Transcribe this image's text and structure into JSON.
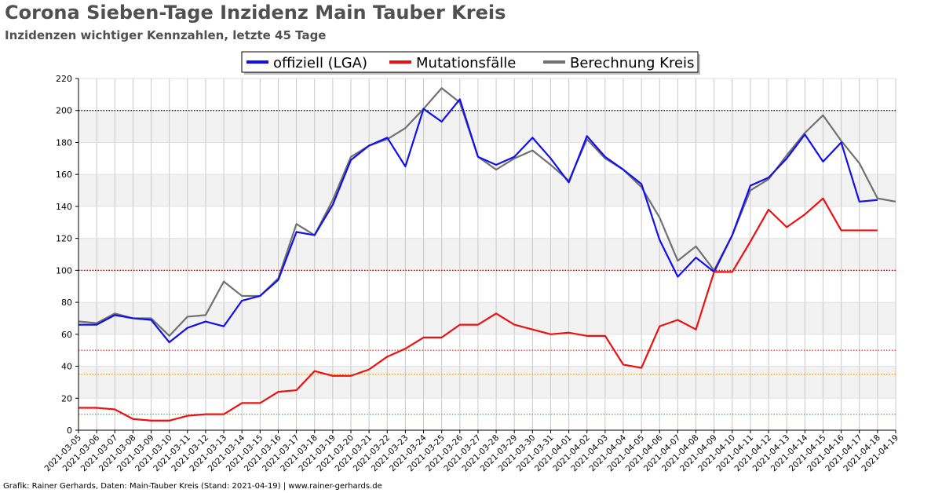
{
  "title": "Corona Sieben-Tage Inzidenz Main Tauber Kreis",
  "subtitle": "Inzidenzen wichtiger Kennzahlen, letzte 45 Tage",
  "footer": "Grafik: Rainer Gerhards, Daten: Main-Tauber Kreis (Stand: 2021-04-19) | www.rainer-gerhards.de",
  "colors": {
    "official": "#1010ee",
    "mutation": "#ee1010",
    "calc": "#707070",
    "threshold_10": "#22cc22",
    "threshold_35": "#f0a000",
    "threshold_50": "#cc2222",
    "threshold_100": "#aa0000",
    "threshold_200": "#000000",
    "band": "#f2f2f2",
    "grid": "#c8c8c8"
  },
  "chart_data": {
    "type": "line",
    "title": "Corona Sieben-Tage Inzidenz Main Tauber Kreis",
    "subtitle": "Inzidenzen wichtiger Kennzahlen, letzte 45 Tage",
    "xlabel": "",
    "ylabel": "",
    "ylim": [
      0,
      220
    ],
    "yticks": [
      0,
      20,
      40,
      60,
      80,
      100,
      120,
      140,
      160,
      180,
      200,
      220
    ],
    "grid": true,
    "legend_position": "top-center",
    "reference_lines": [
      10,
      35,
      50,
      100,
      200
    ],
    "categories": [
      "2021-03-05",
      "2021-03-06",
      "2021-03-07",
      "2021-03-08",
      "2021-03-09",
      "2021-03-10",
      "2021-03-11",
      "2021-03-12",
      "2021-03-13",
      "2021-03-14",
      "2021-03-15",
      "2021-03-16",
      "2021-03-17",
      "2021-03-18",
      "2021-03-19",
      "2021-03-20",
      "2021-03-21",
      "2021-03-22",
      "2021-03-23",
      "2021-03-24",
      "2021-03-25",
      "2021-03-26",
      "2021-03-27",
      "2021-03-28",
      "2021-03-29",
      "2021-03-30",
      "2021-03-31",
      "2021-04-01",
      "2021-04-02",
      "2021-04-03",
      "2021-04-04",
      "2021-04-05",
      "2021-04-06",
      "2021-04-07",
      "2021-04-08",
      "2021-04-09",
      "2021-04-10",
      "2021-04-11",
      "2021-04-12",
      "2021-04-13",
      "2021-04-14",
      "2021-04-15",
      "2021-04-16",
      "2021-04-17",
      "2021-04-18",
      "2021-04-19"
    ],
    "series": [
      {
        "name": "offiziell (LGA)",
        "color": "#1010ee",
        "values": [
          66,
          66,
          72,
          70,
          69,
          55,
          64,
          68,
          65,
          81,
          84,
          94,
          124,
          122,
          141,
          169,
          178,
          183,
          165,
          201,
          193,
          207,
          171,
          166,
          171,
          183,
          170,
          155,
          184,
          171,
          163,
          154,
          119,
          96,
          108,
          99,
          122,
          153,
          158,
          170,
          185,
          168,
          180,
          143,
          144,
          null
        ]
      },
      {
        "name": "Mutationsfälle",
        "color": "#ee1010",
        "values": [
          14,
          14,
          13,
          7,
          6,
          6,
          9,
          10,
          10,
          17,
          17,
          24,
          25,
          37,
          34,
          34,
          38,
          46,
          51,
          58,
          58,
          66,
          66,
          73,
          66,
          63,
          60,
          61,
          59,
          59,
          41,
          39,
          65,
          69,
          63,
          99,
          99,
          118,
          138,
          127,
          135,
          145,
          125,
          125,
          125,
          null
        ]
      },
      {
        "name": "Berechnung Kreis",
        "color": "#707070",
        "values": [
          68,
          67,
          73,
          70,
          70,
          59,
          71,
          72,
          93,
          84,
          84,
          95,
          129,
          122,
          144,
          171,
          178,
          182,
          189,
          201,
          214,
          205,
          171,
          163,
          170,
          175,
          166,
          156,
          182,
          170,
          163,
          152,
          133,
          106,
          115,
          100,
          122,
          150,
          157,
          172,
          186,
          197,
          181,
          167,
          145,
          143
        ]
      }
    ]
  }
}
